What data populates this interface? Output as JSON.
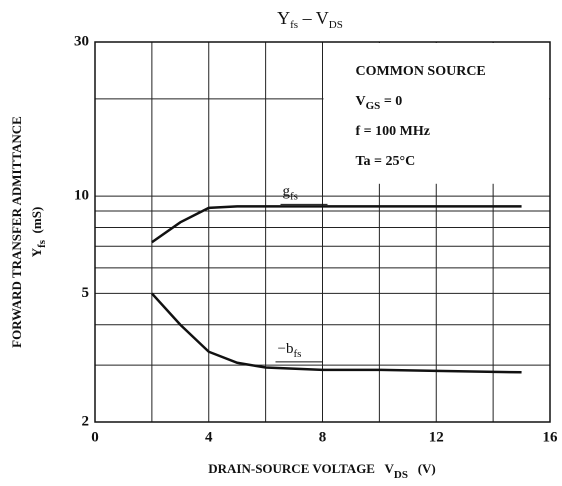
{
  "chart_data": {
    "type": "line",
    "title": [
      "Y",
      "fs",
      " – V",
      "DS"
    ],
    "y_label": [
      "FORWARD TRANSFER ADMITTANCE",
      "Y",
      "fs",
      "  (mS)"
    ],
    "x_label": [
      "DRAIN-SOURCE VOLTAGE   V",
      "DS",
      "   (V)"
    ],
    "annotation": {
      "line1": "COMMON SOURCE",
      "line2": [
        "V",
        "GS",
        " = 0"
      ],
      "line3": "f = 100 MHz",
      "line4": "Ta = 25°C"
    },
    "log_y": true,
    "xlim": [
      0,
      16
    ],
    "xticks": [
      0,
      4,
      8,
      12,
      16
    ],
    "minor_xticks": [
      2,
      6,
      10,
      14
    ],
    "ylim": [
      2,
      30
    ],
    "yticks": [
      2,
      5,
      10,
      30
    ],
    "minor_yticks": [
      3,
      4,
      6,
      7,
      8,
      9,
      20
    ],
    "grid": true,
    "series": [
      {
        "name": [
          "g",
          "fs"
        ],
        "color": "#111",
        "x": [
          2,
          3,
          4,
          5,
          6,
          8,
          10,
          12,
          15
        ],
        "values": [
          7.2,
          8.3,
          9.2,
          9.3,
          9.3,
          9.3,
          9.3,
          9.3,
          9.3
        ]
      },
      {
        "name": [
          "−b",
          "fs"
        ],
        "color": "#111",
        "x": [
          2,
          3,
          4,
          5,
          6,
          8,
          10,
          12,
          15
        ],
        "values": [
          5,
          4,
          3.3,
          3.05,
          2.95,
          2.9,
          2.9,
          2.88,
          2.85
        ]
      }
    ]
  }
}
